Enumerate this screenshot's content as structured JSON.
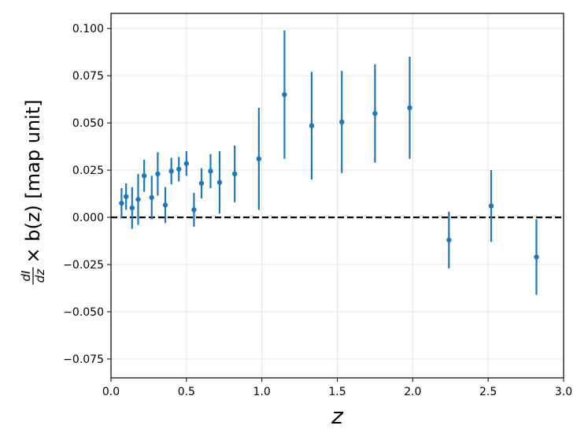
{
  "chart_data": {
    "type": "scatter",
    "title": "",
    "xlabel": "z",
    "ylabel": {
      "frac_num": "dI",
      "frac_den": "dz",
      "rest": "× b(z) [map unit]"
    },
    "xlim": [
      0.0,
      3.0
    ],
    "ylim": [
      -0.085,
      0.108
    ],
    "x_ticks": [
      0.0,
      0.5,
      1.0,
      1.5,
      2.0,
      2.5,
      3.0
    ],
    "x_tick_labels": [
      "0.0",
      "0.5",
      "1.0",
      "1.5",
      "2.0",
      "2.5",
      "3.0"
    ],
    "y_ticks": [
      -0.075,
      -0.05,
      -0.025,
      0.0,
      0.025,
      0.05,
      0.075,
      0.1
    ],
    "y_tick_labels": [
      "−0.075",
      "−0.050",
      "−0.025",
      "0.000",
      "0.025",
      "0.050",
      "0.075",
      "0.100"
    ],
    "grid": true,
    "reference_line": {
      "y": 0.0,
      "style": "dashed",
      "color": "#000000"
    },
    "series": [
      {
        "color": "#1f77b4",
        "points": [
          {
            "x": 0.07,
            "y": 0.0075,
            "err": 0.008
          },
          {
            "x": 0.1,
            "y": 0.011,
            "err": 0.007
          },
          {
            "x": 0.14,
            "y": 0.005,
            "err": 0.011
          },
          {
            "x": 0.18,
            "y": 0.0095,
            "err": 0.0135
          },
          {
            "x": 0.22,
            "y": 0.022,
            "err": 0.0085
          },
          {
            "x": 0.27,
            "y": 0.0105,
            "err": 0.0115
          },
          {
            "x": 0.31,
            "y": 0.023,
            "err": 0.0115
          },
          {
            "x": 0.36,
            "y": 0.0065,
            "err": 0.0095
          },
          {
            "x": 0.4,
            "y": 0.0245,
            "err": 0.007
          },
          {
            "x": 0.45,
            "y": 0.0255,
            "err": 0.0065
          },
          {
            "x": 0.5,
            "y": 0.0285,
            "err": 0.0065
          },
          {
            "x": 0.55,
            "y": 0.004,
            "err": 0.009
          },
          {
            "x": 0.6,
            "y": 0.018,
            "err": 0.008
          },
          {
            "x": 0.66,
            "y": 0.0245,
            "err": 0.009
          },
          {
            "x": 0.72,
            "y": 0.0185,
            "err": 0.0165
          },
          {
            "x": 0.82,
            "y": 0.023,
            "err": 0.015
          },
          {
            "x": 0.98,
            "y": 0.031,
            "err": 0.027
          },
          {
            "x": 1.15,
            "y": 0.065,
            "err": 0.034
          },
          {
            "x": 1.33,
            "y": 0.0485,
            "err": 0.0285
          },
          {
            "x": 1.53,
            "y": 0.0505,
            "err": 0.027
          },
          {
            "x": 1.75,
            "y": 0.055,
            "err": 0.026
          },
          {
            "x": 1.98,
            "y": 0.058,
            "err": 0.027
          },
          {
            "x": 2.24,
            "y": -0.012,
            "err": 0.015
          },
          {
            "x": 2.52,
            "y": 0.006,
            "err": 0.019
          },
          {
            "x": 2.82,
            "y": -0.021,
            "err": 0.02
          }
        ]
      }
    ]
  }
}
